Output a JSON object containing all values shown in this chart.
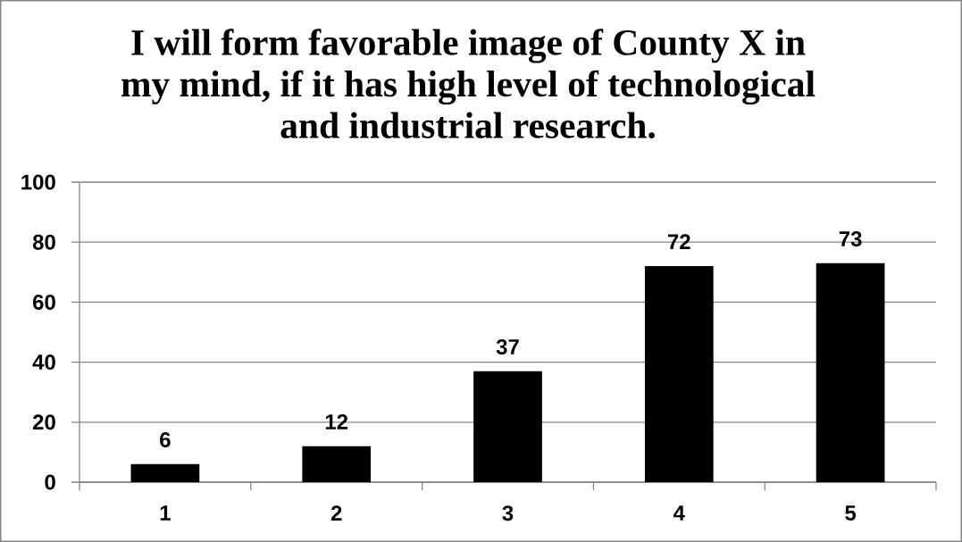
{
  "chart_data": {
    "type": "bar",
    "title": "I will form favorable image of County X in my mind, if it has high level of technological and industrial research.",
    "categories": [
      "1",
      "2",
      "3",
      "4",
      "5"
    ],
    "values": [
      6,
      12,
      37,
      72,
      73
    ],
    "color": "#000000",
    "ylim": [
      0,
      100
    ],
    "yticks": [
      0,
      20,
      40,
      60,
      80,
      100
    ],
    "grid": "y",
    "data_labels": true
  }
}
